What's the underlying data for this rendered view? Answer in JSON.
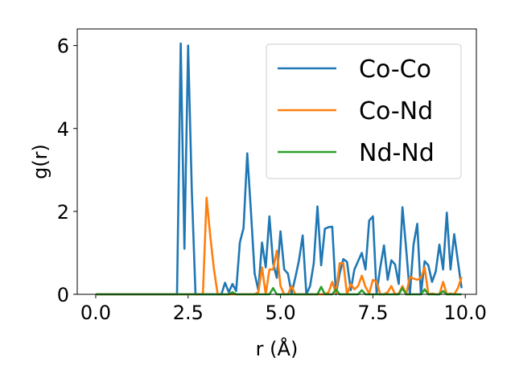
{
  "chart_data": {
    "type": "line",
    "xlabel": "r (Å)",
    "ylabel": "g(r)",
    "xlim": [
      -0.5,
      10.3
    ],
    "ylim": [
      0,
      6.4
    ],
    "xticks": [
      "0.0",
      "2.5",
      "5.0",
      "7.5",
      "10.0"
    ],
    "xtick_values": [
      0,
      2.5,
      5.0,
      7.5,
      10.0
    ],
    "yticks": [
      "0",
      "2",
      "4",
      "6"
    ],
    "ytick_values": [
      0,
      2,
      4,
      6
    ],
    "grid": false,
    "legend_position": "top-right",
    "series": [
      {
        "name": "Co-Co",
        "color": "#1f77b4",
        "points": [
          [
            0,
            0
          ],
          [
            2.2,
            0
          ],
          [
            2.3,
            6.05
          ],
          [
            2.4,
            1.1
          ],
          [
            2.5,
            6.0
          ],
          [
            2.6,
            2.5
          ],
          [
            2.7,
            0
          ],
          [
            3.4,
            0
          ],
          [
            3.5,
            0.28
          ],
          [
            3.6,
            0.05
          ],
          [
            3.7,
            0.25
          ],
          [
            3.8,
            0.08
          ],
          [
            3.9,
            1.25
          ],
          [
            4.0,
            1.6
          ],
          [
            4.1,
            3.4
          ],
          [
            4.2,
            2.0
          ],
          [
            4.3,
            0.5
          ],
          [
            4.4,
            0.1
          ],
          [
            4.5,
            1.25
          ],
          [
            4.6,
            0.65
          ],
          [
            4.7,
            1.88
          ],
          [
            4.8,
            0.75
          ],
          [
            4.9,
            0.4
          ],
          [
            5.0,
            1.52
          ],
          [
            5.1,
            0.6
          ],
          [
            5.2,
            0.5
          ],
          [
            5.3,
            0.02
          ],
          [
            5.4,
            0.4
          ],
          [
            5.5,
            0.82
          ],
          [
            5.6,
            1.42
          ],
          [
            5.7,
            0.0
          ],
          [
            5.8,
            0.2
          ],
          [
            5.9,
            0.75
          ],
          [
            6.0,
            2.12
          ],
          [
            6.1,
            0.7
          ],
          [
            6.2,
            1.58
          ],
          [
            6.3,
            1.62
          ],
          [
            6.4,
            1.63
          ],
          [
            6.5,
            0.0
          ],
          [
            6.6,
            0.5
          ],
          [
            6.7,
            0.85
          ],
          [
            6.8,
            0.78
          ],
          [
            6.9,
            0.1
          ],
          [
            7.0,
            0.6
          ],
          [
            7.1,
            0.8
          ],
          [
            7.2,
            1.0
          ],
          [
            7.3,
            0.6
          ],
          [
            7.4,
            1.78
          ],
          [
            7.5,
            1.88
          ],
          [
            7.6,
            0.02
          ],
          [
            7.7,
            0.65
          ],
          [
            7.8,
            1.18
          ],
          [
            7.9,
            0.35
          ],
          [
            8.0,
            0.82
          ],
          [
            8.1,
            0.72
          ],
          [
            8.2,
            0.25
          ],
          [
            8.3,
            2.1
          ],
          [
            8.4,
            1.1
          ],
          [
            8.5,
            0.0
          ],
          [
            8.6,
            1.2
          ],
          [
            8.7,
            1.7
          ],
          [
            8.8,
            0.0
          ],
          [
            8.9,
            0.8
          ],
          [
            9.0,
            0.7
          ],
          [
            9.1,
            0.3
          ],
          [
            9.2,
            0.55
          ],
          [
            9.3,
            1.2
          ],
          [
            9.4,
            0.6
          ],
          [
            9.5,
            1.97
          ],
          [
            9.6,
            0.6
          ],
          [
            9.7,
            1.45
          ],
          [
            9.8,
            0.8
          ],
          [
            9.9,
            0.15
          ]
        ]
      },
      {
        "name": "Co-Nd",
        "color": "#ff7f0e",
        "points": [
          [
            0,
            0
          ],
          [
            2.9,
            0
          ],
          [
            3.0,
            2.33
          ],
          [
            3.1,
            1.4
          ],
          [
            3.2,
            0.6
          ],
          [
            3.3,
            0.0
          ],
          [
            4.3,
            0.0
          ],
          [
            4.4,
            0.05
          ],
          [
            4.5,
            0.65
          ],
          [
            4.6,
            0.0
          ],
          [
            4.7,
            0.6
          ],
          [
            4.8,
            0.6
          ],
          [
            4.9,
            1.05
          ],
          [
            5.0,
            0.2
          ],
          [
            5.1,
            0.0
          ],
          [
            5.2,
            0.0
          ],
          [
            5.3,
            0.2
          ],
          [
            5.4,
            0.0
          ],
          [
            6.2,
            0.0
          ],
          [
            6.3,
            0.05
          ],
          [
            6.4,
            0.3
          ],
          [
            6.5,
            0.02
          ],
          [
            6.6,
            0.75
          ],
          [
            6.7,
            0.75
          ],
          [
            6.8,
            0.0
          ],
          [
            6.9,
            0.25
          ],
          [
            7.0,
            0.12
          ],
          [
            7.1,
            0.2
          ],
          [
            7.2,
            0.45
          ],
          [
            7.3,
            0.18
          ],
          [
            7.4,
            0.02
          ],
          [
            7.5,
            0.35
          ],
          [
            7.6,
            0.3
          ],
          [
            7.7,
            0.0
          ],
          [
            7.8,
            0.0
          ],
          [
            7.9,
            0.05
          ],
          [
            8.0,
            0.2
          ],
          [
            8.1,
            0.0
          ],
          [
            8.2,
            0.02
          ],
          [
            8.3,
            0.2
          ],
          [
            8.4,
            0.0
          ],
          [
            8.5,
            0.42
          ],
          [
            8.6,
            0.38
          ],
          [
            8.7,
            0.35
          ],
          [
            8.8,
            0.4
          ],
          [
            8.9,
            0.65
          ],
          [
            9.0,
            0.0
          ],
          [
            9.1,
            0.02
          ],
          [
            9.2,
            0.0
          ],
          [
            9.3,
            0.0
          ],
          [
            9.4,
            0.3
          ],
          [
            9.5,
            0.0
          ],
          [
            9.6,
            0.02
          ],
          [
            9.7,
            0.0
          ],
          [
            9.8,
            0.15
          ],
          [
            9.9,
            0.42
          ]
        ]
      },
      {
        "name": "Nd-Nd",
        "color": "#2ca02c",
        "points": [
          [
            0,
            0
          ],
          [
            3.6,
            0
          ],
          [
            3.7,
            0.05
          ],
          [
            3.8,
            0
          ],
          [
            4.7,
            0
          ],
          [
            4.8,
            0.15
          ],
          [
            4.9,
            0.0
          ],
          [
            6.0,
            0.0
          ],
          [
            6.1,
            0.18
          ],
          [
            6.2,
            0.0
          ],
          [
            6.4,
            0.0
          ],
          [
            6.5,
            0.12
          ],
          [
            6.6,
            0.0
          ],
          [
            7.1,
            0.0
          ],
          [
            7.2,
            0.1
          ],
          [
            7.3,
            0.0
          ],
          [
            8.2,
            0.0
          ],
          [
            8.3,
            0.15
          ],
          [
            8.4,
            0.0
          ],
          [
            8.8,
            0.0
          ],
          [
            8.9,
            0.12
          ],
          [
            9.0,
            0.0
          ],
          [
            9.3,
            0.0
          ],
          [
            9.4,
            0.08
          ],
          [
            9.5,
            0.0
          ],
          [
            9.9,
            0.0
          ]
        ]
      }
    ]
  }
}
